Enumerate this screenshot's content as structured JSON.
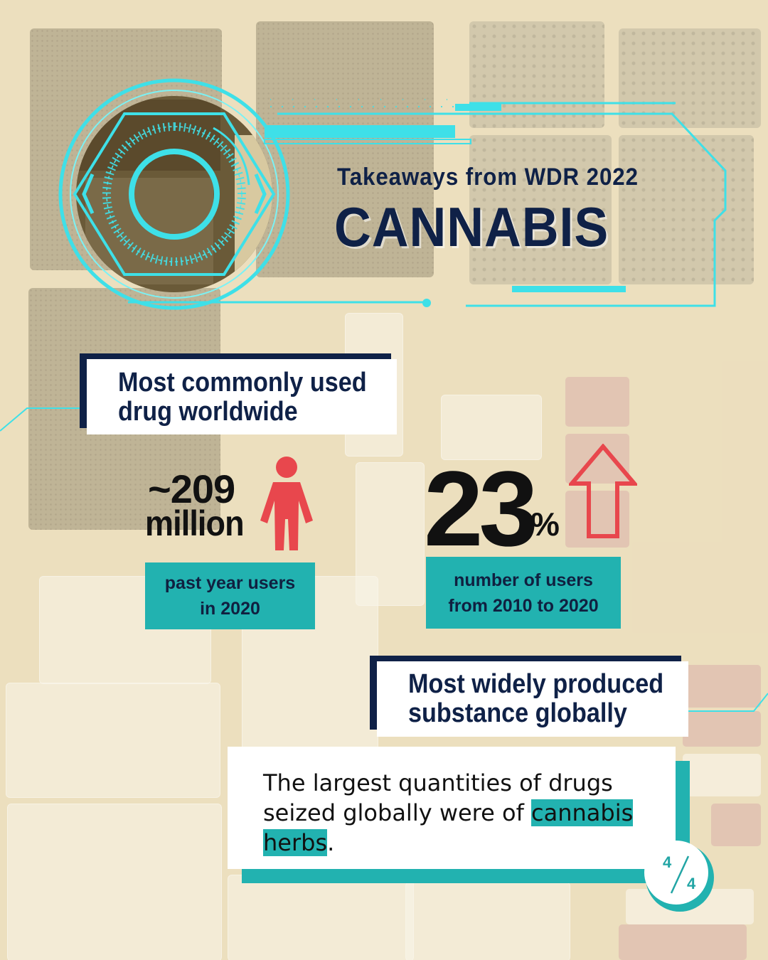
{
  "header": {
    "subtitle": "Takeaways from WDR 2022",
    "title": "CANNABIS"
  },
  "fact1": {
    "heading": "Most commonly used drug worldwide"
  },
  "stat_users": {
    "value": "~209",
    "unit": "million",
    "caption": "past year users in 2020",
    "icon": "person-icon"
  },
  "stat_growth": {
    "value": "23",
    "unit": "%",
    "caption": "number of users from 2010 to 2020",
    "icon": "up-arrow-icon"
  },
  "fact2": {
    "heading": "Most widely produced substance globally"
  },
  "quote": {
    "before": "The largest quantities of drugs seized globally were of ",
    "highlight_1": "cannabis",
    "highlight_2": "herbs",
    "after": "."
  },
  "pagination": {
    "current": "4",
    "total": "4"
  },
  "colors": {
    "navy": "#0f2147",
    "teal": "#22b2b0",
    "cyan_hud": "#3ee0e8",
    "red": "#e8474d"
  }
}
